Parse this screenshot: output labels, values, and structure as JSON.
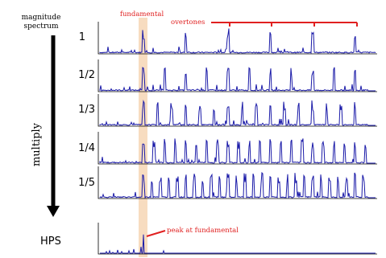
{
  "labels": {
    "magnitude_line1": "magnitude",
    "magnitude_line2": "spectrum",
    "multiply": "multiply",
    "fundamental": "fundamental",
    "overtones": "overtones",
    "peak_at_fundamental": "peak at fundamental",
    "hps": "HPS"
  },
  "colors": {
    "spectrum": "#1a1aa8",
    "annotation": "#e02020",
    "highlight": "#f7dcc0",
    "axis": "#000000"
  },
  "rows": [
    {
      "factor": "1"
    },
    {
      "factor": "1/2"
    },
    {
      "factor": "1/3"
    },
    {
      "factor": "1/4"
    },
    {
      "factor": "1/5"
    }
  ]
}
